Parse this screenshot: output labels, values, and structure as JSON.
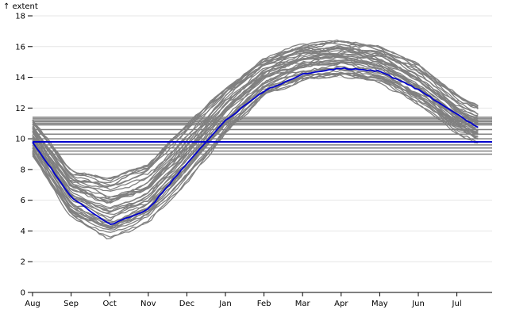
{
  "chart_data": {
    "type": "line",
    "title": "",
    "ylabel": "↑ extent",
    "xlabel": "",
    "ylim": [
      0,
      18
    ],
    "yticks": [
      0,
      2,
      4,
      6,
      8,
      10,
      12,
      14,
      16,
      18
    ],
    "x_ticks": [
      "Aug",
      "Sep",
      "Oct",
      "Nov",
      "Dec",
      "Jan",
      "Feb",
      "Mar",
      "Apr",
      "May",
      "Jun",
      "Jul"
    ],
    "grid": "horizontal",
    "colors": {
      "history": "#808080",
      "highlight": "#0000cc",
      "grid": "#e6e6e6"
    },
    "seasonal_profile": {
      "x": [
        "Aug",
        "Sep",
        "Oct",
        "Nov",
        "Dec",
        "Jan",
        "Feb",
        "Mar",
        "Apr",
        "May",
        "Jun",
        "Jul",
        "Aug"
      ],
      "y_range_min": [
        8.9,
        4.9,
        3.5,
        4.6,
        7.2,
        10.3,
        12.8,
        13.8,
        14.1,
        13.7,
        12.3,
        10.4,
        9.2
      ],
      "y_range_max": [
        11.3,
        7.9,
        7.4,
        8.3,
        10.9,
        13.4,
        15.3,
        16.2,
        16.4,
        16.0,
        14.8,
        12.8,
        11.6
      ]
    },
    "series": [
      {
        "role": "highlight",
        "x": [
          "Aug",
          "Sep",
          "Oct",
          "Nov",
          "Dec",
          "Jan",
          "Feb",
          "Mar",
          "Apr",
          "May",
          "Jun",
          "Jul",
          "Aug"
        ],
        "y": [
          9.8,
          6.2,
          4.4,
          5.4,
          8.4,
          11.2,
          13.1,
          14.2,
          14.6,
          14.4,
          13.2,
          11.6,
          10.0
        ]
      }
    ],
    "mean_lines": {
      "values": [
        9.0,
        9.2,
        9.4,
        9.6,
        9.8,
        10.0,
        10.3,
        10.6,
        10.9,
        11.0,
        11.1,
        11.2,
        11.3,
        11.4
      ],
      "highlight_value": 9.8
    }
  }
}
